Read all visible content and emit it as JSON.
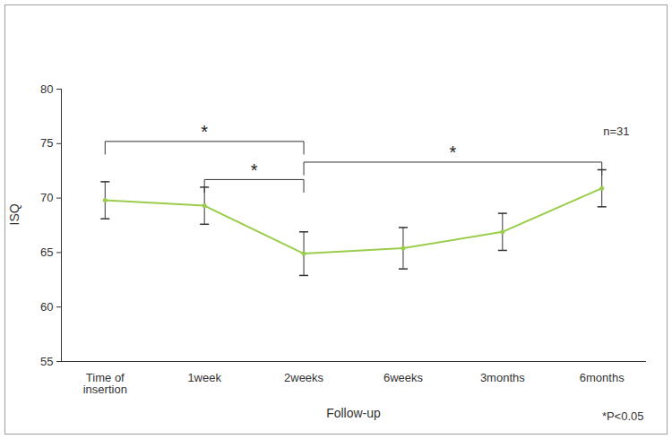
{
  "chart_data": {
    "type": "line",
    "categories": [
      "Time of insertion",
      "1week",
      "2weeks",
      "6weeks",
      "3months",
      "6months"
    ],
    "values": [
      69.8,
      69.3,
      64.9,
      65.4,
      66.9,
      70.9
    ],
    "errors": [
      1.7,
      1.7,
      2.0,
      1.9,
      1.7,
      1.7
    ],
    "color": "#9acd4c",
    "marker": "circle",
    "x_label": "Follow-up",
    "y_label": "ISQ",
    "ylim": [
      55,
      80
    ],
    "yticks": [
      55,
      60,
      65,
      70,
      75,
      80
    ],
    "annotations": [
      "n=31",
      "*P<0.05"
    ],
    "significance": [
      {
        "from": "Time of insertion",
        "to": "2weeks",
        "label": "*"
      },
      {
        "from": "1week",
        "to": "2weeks",
        "label": "*"
      },
      {
        "from": "2weeks",
        "to": "6months",
        "label": "*"
      }
    ]
  }
}
